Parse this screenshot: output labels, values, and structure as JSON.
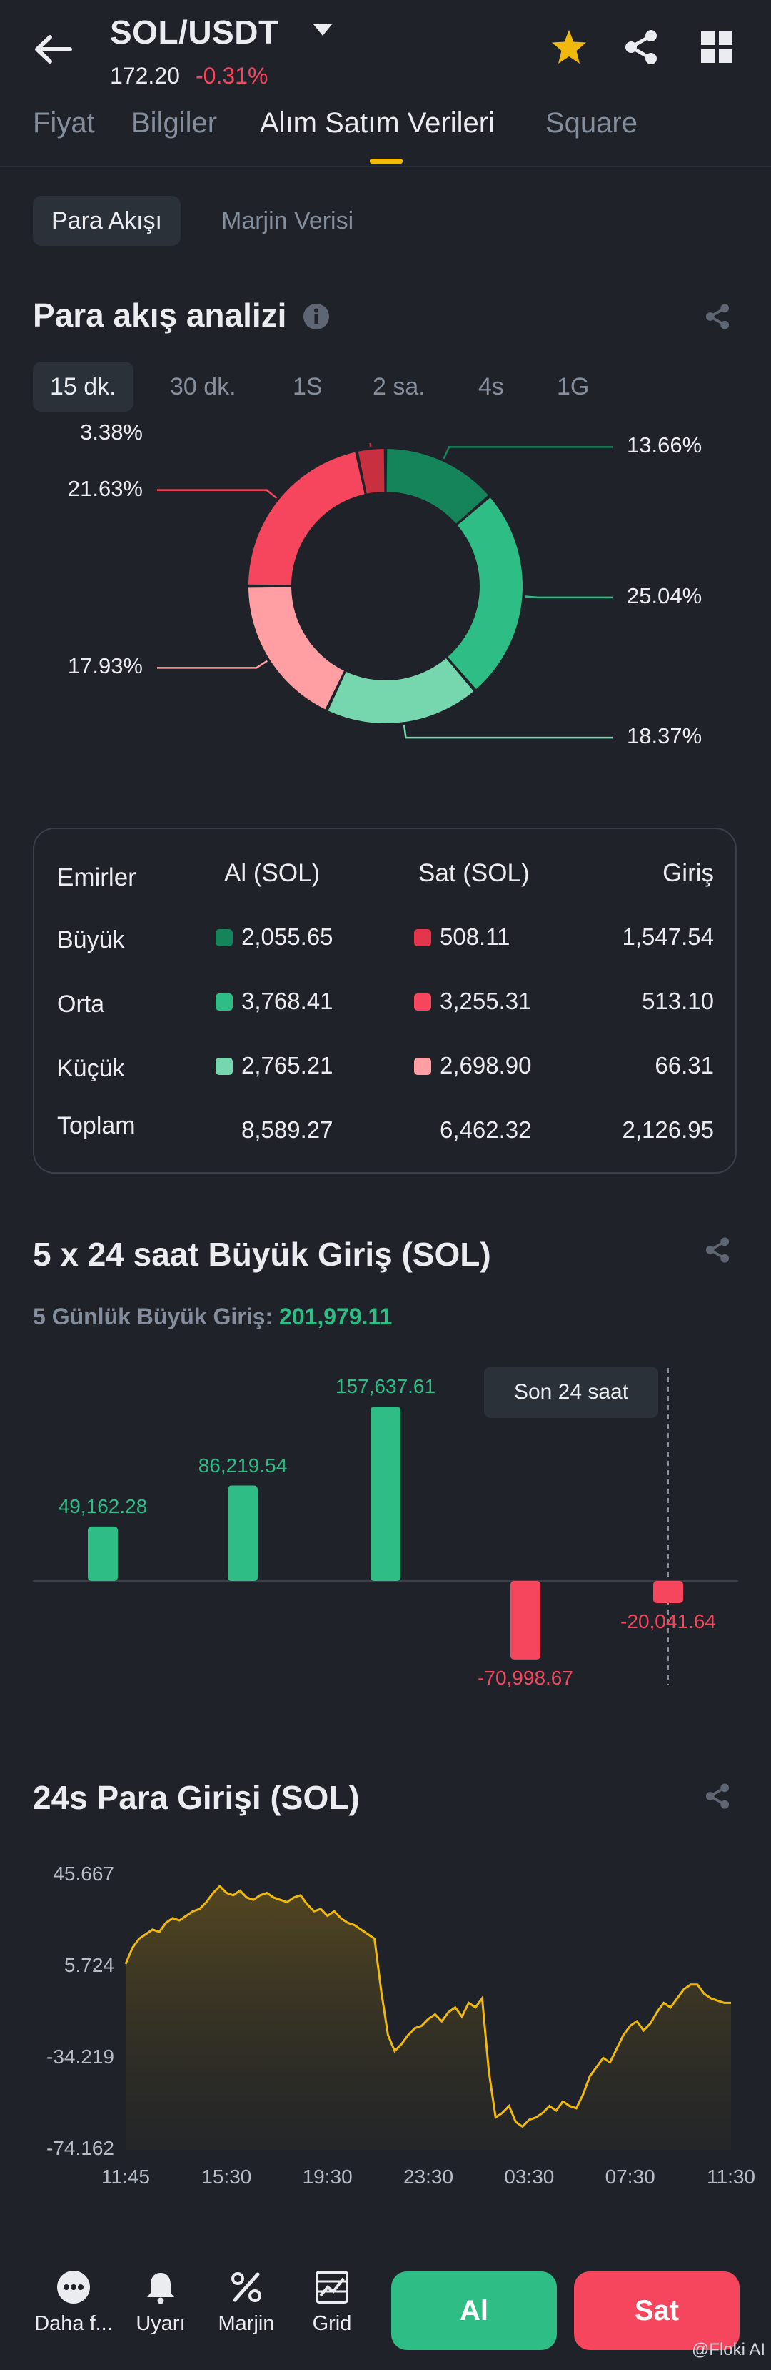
{
  "header": {
    "pair": "SOL/USDT",
    "price": "172.20",
    "change": "-0.31%"
  },
  "tabs": [
    "Fiyat",
    "Bilgiler",
    "Alım Satım Verileri",
    "Square"
  ],
  "subtabs": [
    "Para Akışı",
    "Marjin Verisi"
  ],
  "flow": {
    "title": "Para akış analizi",
    "periods": [
      "15 dk.",
      "30 dk.",
      "1S",
      "2 sa.",
      "4s",
      "1G"
    ],
    "slices": [
      {
        "pct": 13.66,
        "label": "13.66%",
        "color": "#15845a"
      },
      {
        "pct": 25.04,
        "label": "25.04%",
        "color": "#2ebd85"
      },
      {
        "pct": 18.37,
        "label": "18.37%",
        "color": "#76d6ad"
      },
      {
        "pct": 17.93,
        "label": "17.93%",
        "color": "#ff9ea3"
      },
      {
        "pct": 21.63,
        "label": "21.63%",
        "color": "#f6465d"
      },
      {
        "pct": 3.38,
        "label": "3.38%",
        "color": "#c9303f"
      }
    ]
  },
  "orders": {
    "headers": [
      "Emirler",
      "Al (SOL)",
      "Sat (SOL)",
      "Giriş"
    ],
    "rows": [
      {
        "name": "Büyük",
        "buy": "2,055.65",
        "sell": "508.11",
        "net": "1,547.54",
        "buy_color": "#15845a",
        "sell_color": "#e3364d"
      },
      {
        "name": "Orta",
        "buy": "3,768.41",
        "sell": "3,255.31",
        "net": "513.10",
        "buy_color": "#2ebd85",
        "sell_color": "#f6465d"
      },
      {
        "name": "Küçük",
        "buy": "2,765.21",
        "sell": "2,698.90",
        "net": "66.31",
        "buy_color": "#76d6ad",
        "sell_color": "#ff9ea3"
      }
    ],
    "total": {
      "name": "Toplam",
      "buy": "8,589.27",
      "sell": "6,462.32",
      "net": "2,126.95"
    }
  },
  "big_inflow": {
    "title": "5 x 24 saat Büyük Giriş (SOL)",
    "subtitle_label": "5 Günlük Büyük Giriş:",
    "subtitle_value": "201,979.11",
    "tooltip": "Son 24 saat"
  },
  "net_inflow": {
    "title": "24s Para Girişi (SOL)"
  },
  "bottom": {
    "more": "Daha f...",
    "alerts": "Uyarı",
    "margin": "Marjin",
    "grid": "Grid",
    "buy": "Al",
    "sell": "Sat"
  },
  "watermark": "@Floki AI",
  "chart_data": [
    {
      "type": "pie",
      "categories": [
        "13.66%",
        "25.04%",
        "18.37%",
        "17.93%",
        "21.63%",
        "3.38%"
      ],
      "values": [
        13.66,
        25.04,
        18.37,
        17.93,
        21.63,
        3.38
      ]
    },
    {
      "type": "bar",
      "categories": [
        "1",
        "2",
        "3",
        "4",
        "5"
      ],
      "values": [
        49162.28,
        86219.54,
        157637.61,
        -70998.67,
        -20041.64
      ],
      "labels": [
        "49,162.28",
        "86,219.54",
        "157,637.61",
        "-70,998.67",
        "-20,041.64"
      ]
    },
    {
      "type": "area",
      "x_ticks": [
        "11:45",
        "15:30",
        "19:30",
        "23:30",
        "03:30",
        "07:30",
        "11:30"
      ],
      "y_ticks": [
        "45.667",
        "5.724",
        "-34.219",
        "-74.162"
      ],
      "ylim": [
        -74.162,
        45.667
      ],
      "values": [
        7,
        14,
        18,
        20,
        22,
        21,
        25,
        27,
        26,
        28,
        30,
        31,
        34,
        38,
        41,
        38,
        37,
        39,
        36,
        35,
        37,
        38,
        36,
        35,
        34,
        36,
        37,
        33,
        30,
        31,
        28,
        30,
        27,
        25,
        24,
        22,
        20,
        18,
        -5,
        -24,
        -31,
        -28,
        -24,
        -21,
        -20,
        -17,
        -15,
        -18,
        -14,
        -12,
        -16,
        -10,
        -12,
        -8,
        -40,
        -60,
        -58,
        -55,
        -62,
        -64,
        -61,
        -60,
        -58,
        -55,
        -57,
        -53,
        -55,
        -56,
        -50,
        -42,
        -38,
        -34,
        -36,
        -30,
        -24,
        -20,
        -18,
        -22,
        -19,
        -14,
        -10,
        -12,
        -8,
        -4,
        -2,
        -2,
        -6,
        -8,
        -9,
        -10,
        -10
      ]
    }
  ]
}
